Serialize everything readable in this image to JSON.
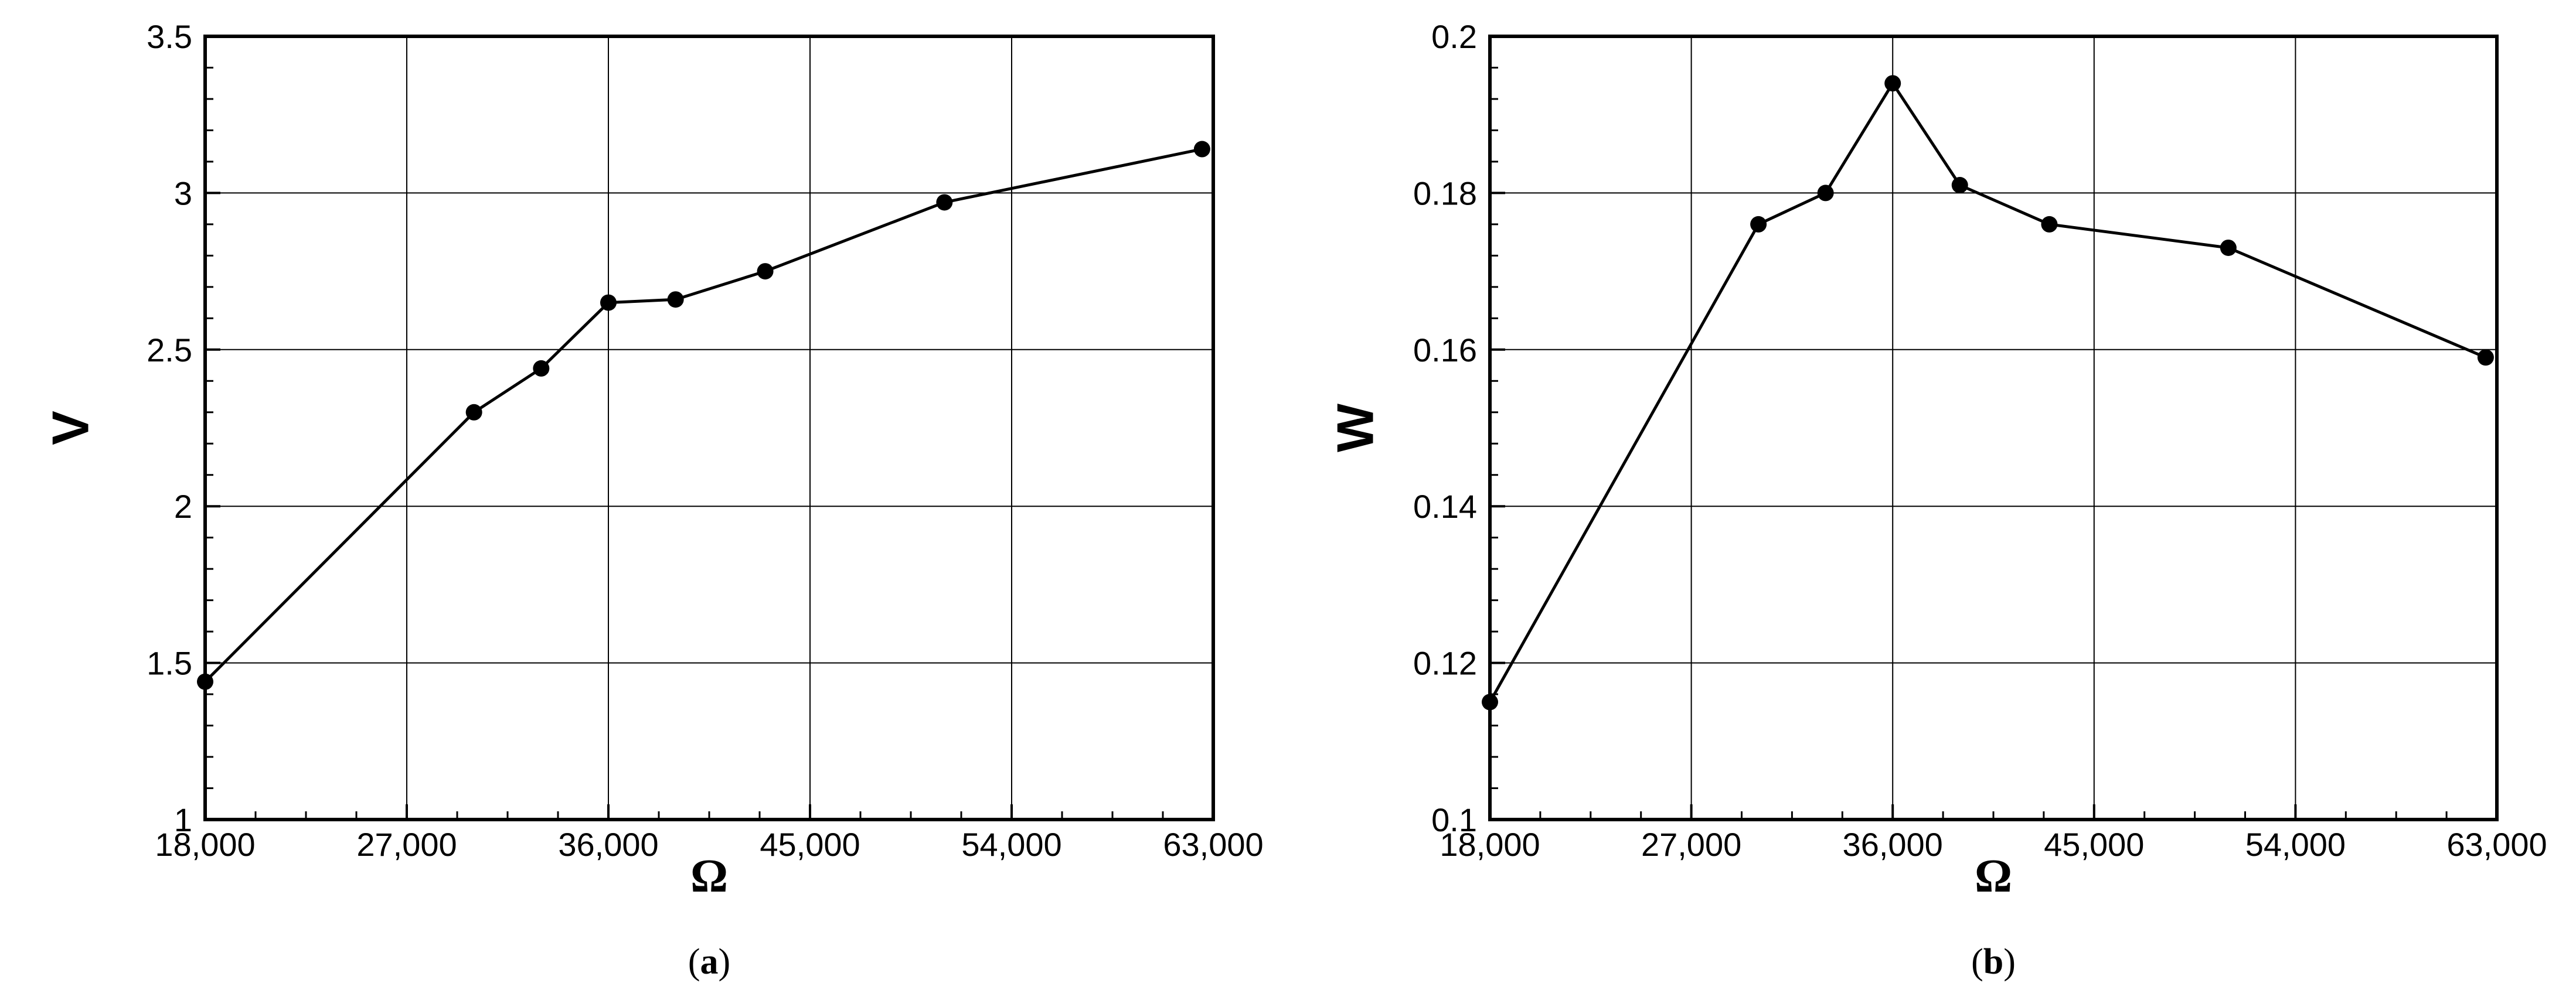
{
  "chart_data": [
    {
      "type": "line",
      "panel_label": {
        "open": "(",
        "letter": "a",
        "close": ")"
      },
      "xlabel": "Ω",
      "ylabel": "V",
      "xlim": [
        18000,
        63000
      ],
      "ylim": [
        1,
        3.5
      ],
      "xticks": [
        18000,
        27000,
        36000,
        45000,
        54000,
        63000
      ],
      "xtick_labels": [
        "18,000",
        "27,000",
        "36,000",
        "45,000",
        "54,000",
        "63,000"
      ],
      "yticks": [
        1,
        1.5,
        2,
        2.5,
        3,
        3.5
      ],
      "ytick_labels": [
        "1",
        "1.5",
        "2",
        "2.5",
        "3",
        "3.5"
      ],
      "grid": true,
      "series": [
        {
          "color": "#000000",
          "marker": "circle",
          "x": [
            18000,
            30000,
            33000,
            36000,
            39000,
            43000,
            51000,
            62500
          ],
          "y": [
            1.44,
            2.3,
            2.44,
            2.65,
            2.66,
            2.75,
            2.97,
            3.14
          ]
        }
      ]
    },
    {
      "type": "line",
      "panel_label": {
        "open": "(",
        "letter": "b",
        "close": ")"
      },
      "xlabel": "Ω",
      "ylabel": "W",
      "xlim": [
        18000,
        63000
      ],
      "ylim": [
        0.1,
        0.2
      ],
      "xticks": [
        18000,
        27000,
        36000,
        45000,
        54000,
        63000
      ],
      "xtick_labels": [
        "18,000",
        "27,000",
        "36,000",
        "45,000",
        "54,000",
        "63,000"
      ],
      "yticks": [
        0.1,
        0.12,
        0.14,
        0.16,
        0.18,
        0.2
      ],
      "ytick_labels": [
        "0.1",
        "0.12",
        "0.14",
        "0.16",
        "0.18",
        "0.2"
      ],
      "grid": true,
      "series": [
        {
          "color": "#000000",
          "marker": "circle",
          "x": [
            18000,
            30000,
            33000,
            36000,
            39000,
            43000,
            51000,
            62500
          ],
          "y": [
            0.115,
            0.176,
            0.18,
            0.194,
            0.181,
            0.176,
            0.173,
            0.159
          ]
        }
      ]
    }
  ]
}
